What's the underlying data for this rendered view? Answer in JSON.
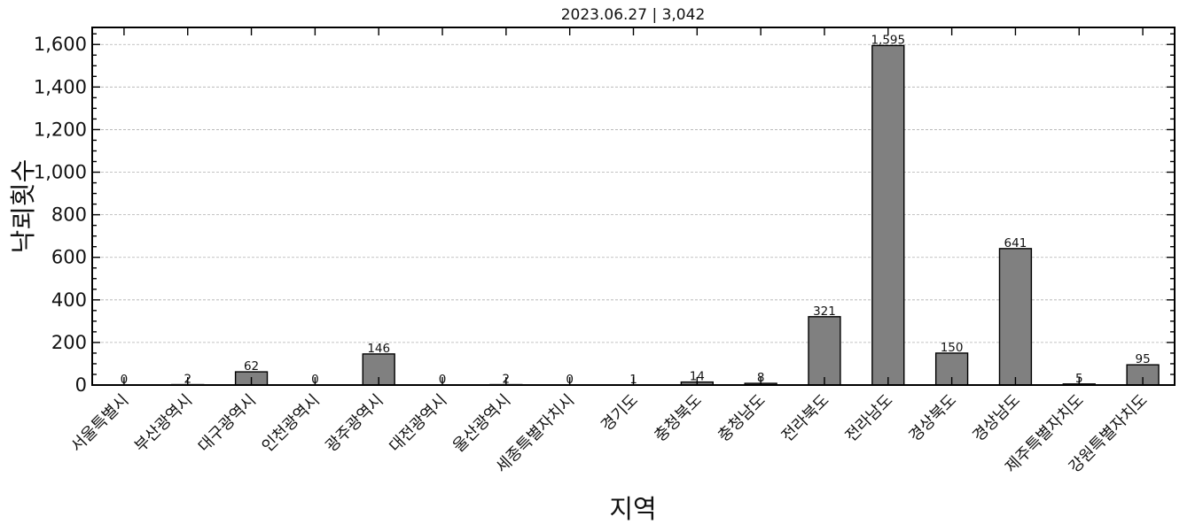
{
  "chart_data": {
    "type": "bar",
    "title": "2023.06.27 | 3,042",
    "xlabel": "지역",
    "ylabel": "낙뢰횟수",
    "categories": [
      "서울특별시",
      "부산광역시",
      "대구광역시",
      "인천광역시",
      "광주광역시",
      "대전광역시",
      "울산광역시",
      "세종특별자치시",
      "경기도",
      "충청북도",
      "충청남도",
      "전라북도",
      "전라남도",
      "경상북도",
      "경상남도",
      "제주특별자치도",
      "강원특별자치도"
    ],
    "values": [
      0,
      2,
      62,
      0,
      146,
      0,
      2,
      0,
      1,
      14,
      8,
      321,
      1595,
      150,
      641,
      5,
      95
    ],
    "value_labels": [
      "0",
      "2",
      "62",
      "0",
      "146",
      "0",
      "2",
      "0",
      "1",
      "14",
      "8",
      "321",
      "1,595",
      "150",
      "641",
      "5",
      "95"
    ],
    "ylim": [
      0,
      1680
    ],
    "yticks": [
      0,
      200,
      400,
      600,
      800,
      1000,
      1200,
      1400,
      1600
    ],
    "ytick_labels": [
      "0",
      "200",
      "400",
      "600",
      "800",
      "1,000",
      "1,200",
      "1,400",
      "1,600"
    ],
    "grid": "y-dashed",
    "colors": {
      "bar": "#808080",
      "edge": "#000000",
      "grid": "#b0b0b0"
    }
  }
}
